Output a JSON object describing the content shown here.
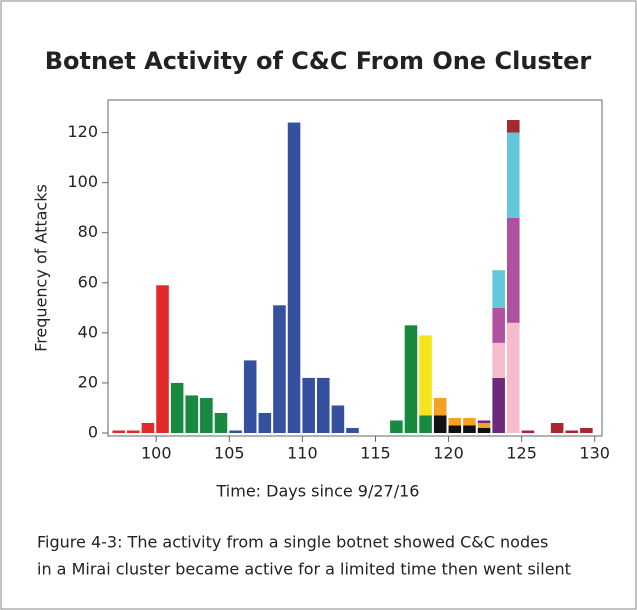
{
  "chart_data": {
    "type": "stacked_bar",
    "title": "Botnet Activity of C&C From One Cluster",
    "xlabel": "Time: Days since 9/27/16",
    "ylabel": "Frequency of Attacks",
    "caption": [
      "Figure 4-3: The activity from a single botnet showed C&C nodes",
      "in a Mirai cluster became active for a limited time then went silent"
    ],
    "x": [
      97,
      98,
      99,
      100,
      101,
      102,
      103,
      104,
      105,
      106,
      107,
      108,
      109,
      110,
      111,
      112,
      113,
      114,
      115,
      116,
      117,
      118,
      119,
      120,
      121,
      122,
      123,
      124,
      125,
      126,
      127,
      128,
      129
    ],
    "xlim": [
      96.7,
      130.5
    ],
    "xticks": [
      100,
      105,
      110,
      115,
      120,
      125,
      130
    ],
    "ylim": [
      -1.2,
      133
    ],
    "yticks": [
      0,
      20,
      40,
      60,
      80,
      100,
      120
    ],
    "series": [
      {
        "color": "#e32a2a",
        "values": [
          1,
          1,
          4,
          59,
          null,
          null,
          null,
          null,
          null,
          null,
          null,
          null,
          null,
          null,
          null,
          null,
          null,
          null,
          null,
          null,
          null,
          null,
          null,
          null,
          null,
          null,
          null,
          null,
          null,
          null,
          null,
          null,
          null
        ]
      },
      {
        "color": "#178a3f",
        "values": [
          null,
          null,
          null,
          null,
          20,
          15,
          14,
          8,
          null,
          null,
          null,
          null,
          null,
          null,
          null,
          null,
          null,
          null,
          null,
          5,
          43,
          7,
          null,
          null,
          null,
          null,
          null,
          null,
          null,
          null,
          null,
          null,
          null
        ]
      },
      {
        "color": "#3650a0",
        "values": [
          null,
          null,
          null,
          null,
          null,
          null,
          null,
          null,
          1,
          29,
          8,
          51,
          124,
          22,
          22,
          11,
          2,
          null,
          null,
          null,
          null,
          null,
          null,
          null,
          null,
          null,
          null,
          null,
          null,
          null,
          null,
          null,
          null
        ]
      },
      {
        "color": "#f5e61b",
        "values": [
          null,
          null,
          null,
          null,
          null,
          null,
          null,
          null,
          null,
          null,
          null,
          null,
          null,
          null,
          null,
          null,
          null,
          null,
          null,
          null,
          null,
          32,
          null,
          null,
          null,
          null,
          null,
          null,
          null,
          null,
          null,
          null,
          null
        ]
      },
      {
        "color": "#111111",
        "values": [
          null,
          null,
          null,
          null,
          null,
          null,
          null,
          null,
          null,
          null,
          null,
          null,
          null,
          null,
          null,
          null,
          null,
          null,
          null,
          null,
          null,
          null,
          7,
          3,
          3,
          2,
          null,
          null,
          null,
          null,
          null,
          null,
          null
        ]
      },
      {
        "color": "#f4a224",
        "values": [
          null,
          null,
          null,
          null,
          null,
          null,
          null,
          null,
          null,
          null,
          null,
          null,
          null,
          null,
          null,
          null,
          null,
          null,
          null,
          null,
          null,
          null,
          7,
          3,
          3,
          2,
          null,
          null,
          null,
          null,
          null,
          null,
          null
        ]
      },
      {
        "color": "#6b2a7a",
        "values": [
          null,
          null,
          null,
          null,
          null,
          null,
          null,
          null,
          null,
          null,
          null,
          null,
          null,
          null,
          null,
          null,
          null,
          null,
          null,
          null,
          null,
          null,
          null,
          null,
          null,
          1,
          22,
          null,
          null,
          null,
          null,
          null,
          null
        ]
      },
      {
        "color": "#f7bccb",
        "values": [
          null,
          null,
          null,
          null,
          null,
          null,
          null,
          null,
          null,
          null,
          null,
          null,
          null,
          null,
          null,
          null,
          null,
          null,
          null,
          null,
          null,
          null,
          null,
          null,
          null,
          null,
          14,
          44,
          null,
          null,
          null,
          null,
          null
        ]
      },
      {
        "color": "#b0519f",
        "values": [
          null,
          null,
          null,
          null,
          null,
          null,
          null,
          null,
          null,
          null,
          null,
          null,
          null,
          null,
          null,
          null,
          null,
          null,
          null,
          null,
          null,
          null,
          null,
          null,
          null,
          null,
          14,
          42,
          null,
          null,
          null,
          null,
          null
        ]
      },
      {
        "color": "#62c7da",
        "values": [
          null,
          null,
          null,
          null,
          null,
          null,
          null,
          null,
          null,
          null,
          null,
          null,
          null,
          null,
          null,
          null,
          null,
          null,
          null,
          null,
          null,
          null,
          null,
          null,
          null,
          null,
          15,
          34,
          null,
          null,
          null,
          null,
          null
        ]
      },
      {
        "color": "#a8262e",
        "values": [
          null,
          null,
          null,
          null,
          null,
          null,
          null,
          null,
          null,
          null,
          null,
          null,
          null,
          null,
          null,
          null,
          null,
          null,
          null,
          null,
          null,
          null,
          null,
          null,
          null,
          null,
          null,
          5,
          1,
          null,
          4,
          1,
          2
        ]
      }
    ]
  }
}
